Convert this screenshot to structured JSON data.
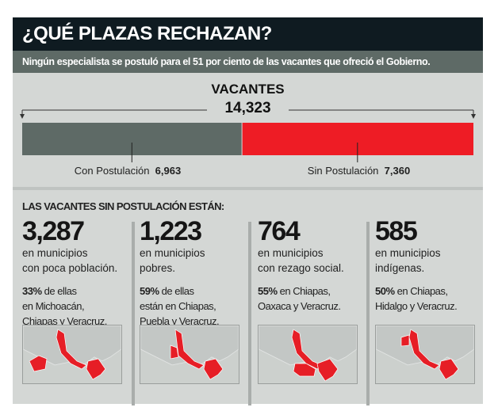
{
  "header": {
    "title": "¿QUÉ PLAZAS RECHAZAN?",
    "subtitle": "Ningún especialista se postuló para el 51 por ciento de las vacantes que ofreció el Gobierno."
  },
  "chart_data": {
    "type": "bar",
    "title": "VACANTES",
    "total": "14,323",
    "categories": [
      "Con Postulación",
      "Sin Postulación"
    ],
    "values": [
      6963,
      7360
    ],
    "value_labels": [
      "6,963",
      "7,360"
    ],
    "colors": [
      "#5e6a66",
      "#ee1c25"
    ]
  },
  "breakdown": {
    "heading": "LAS VACANTES SIN POSTULACIÓN ESTÁN:",
    "items": [
      {
        "number": "3,287",
        "line1": "en municipios",
        "line2": "con poca población.",
        "pct": "33%",
        "rest1": " de ellas",
        "rest2": "en Michoacán,",
        "rest3": "Chiapas y Veracruz."
      },
      {
        "number": "1,223",
        "line1": "en municipios",
        "line2": "pobres.",
        "pct": "59%",
        "rest1": " de ellas",
        "rest2": "están en Chiapas,",
        "rest3": "Puebla y Veracruz."
      },
      {
        "number": "764",
        "line1": "en municipios",
        "line2": "con rezago social.",
        "pct": "55%",
        "rest1": " en Chiapas,",
        "rest2": "Oaxaca y Veracruz.",
        "rest3": ""
      },
      {
        "number": "585",
        "line1": "en municipios",
        "line2": "indígenas.",
        "pct": "50%",
        "rest1": " en Chiapas,",
        "rest2": "Hidalgo y Veracruz.",
        "rest3": ""
      }
    ]
  }
}
